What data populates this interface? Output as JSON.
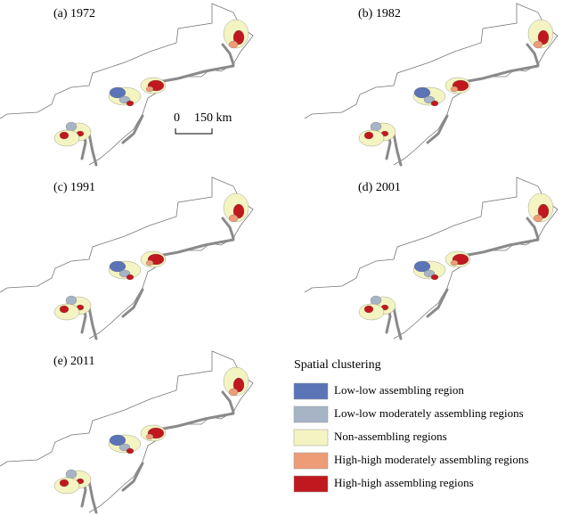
{
  "panels": [
    {
      "label": "(a) 1972"
    },
    {
      "label": "(b) 1982"
    },
    {
      "label": "(c) 1991"
    },
    {
      "label": "(d) 2001"
    },
    {
      "label": "(e) 2011"
    }
  ],
  "scale_bar": {
    "start": "0",
    "end": "150 km"
  },
  "legend": {
    "title": "Spatial clustering",
    "items": [
      {
        "label": "Low-low assembling region",
        "color": "#5b74b8"
      },
      {
        "label": "Low-low moderately assembling regions",
        "color": "#a7b4c6"
      },
      {
        "label": "Non-assembling regions",
        "color": "#f4f4c2"
      },
      {
        "label": "High-high moderately assembling regions",
        "color": "#ee9c78"
      },
      {
        "label": "High-high assembling regions",
        "color": "#c0181e"
      }
    ]
  }
}
